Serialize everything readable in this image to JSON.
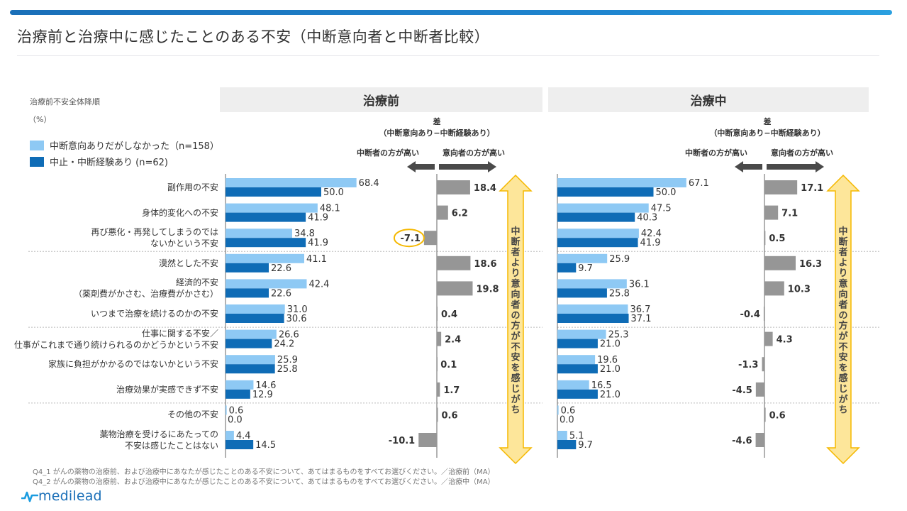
{
  "header": {
    "title": "治療前と治療中に感じたことのある不安（中断意向者と中断者比較）"
  },
  "sort_note": "治療前不安全体降順",
  "unit": "（%）",
  "legend": [
    {
      "label": "中断意向ありだがしなかった（n=158）",
      "color": "#8ec9f4"
    },
    {
      "label": "中止・中断経験あり (n=62)",
      "color": "#0f6cb6"
    }
  ],
  "panels": [
    {
      "title": "治療前"
    },
    {
      "title": "治療中"
    }
  ],
  "diff_header": {
    "line1": "差",
    "line2": "（中断意向あり−中断経験あり）",
    "left": "中断者の方が高い",
    "right": "意向者の方が高い"
  },
  "callout_arrow_text": "中断者より意向者の方が不安を感じがち",
  "colors": {
    "light": "#8ec9f4",
    "dark": "#0f6cb6",
    "diff": "#969696",
    "arrow_fill": "#fde69a",
    "arrow_stroke": "#f5b800",
    "highlight": "#f5b800"
  },
  "chart_data": {
    "type": "bar",
    "title": "治療前と治療中に感じたことのある不安（中断意向者と中断者比較）",
    "unit": "%",
    "categories": [
      "副作用の不安",
      "身体的変化への不安",
      "再び悪化・再発してしまうのではないかという不安",
      "漠然とした不安",
      "経済的不安（薬剤費がかさむ、治療費がかさむ）",
      "いつまで治療を続けるのかの不安",
      "仕事に関する不安／仕事がこれまで通り続けられるのかどうかという不安",
      "家族に負担がかかるのではないかという不安",
      "治療効果が実感できず不安",
      "その他の不安",
      "薬物治療を受けるにあたっての不安は感じたことはない"
    ],
    "category_lines": [
      [
        "副作用の不安"
      ],
      [
        "身体的変化への不安"
      ],
      [
        "再び悪化・再発してしまうのでは",
        "ないかという不安"
      ],
      [
        "漠然とした不安"
      ],
      [
        "経済的不安",
        "（薬剤費がかさむ、治療費がかさむ）"
      ],
      [
        "いつまで治療を続けるのかの不安"
      ],
      [
        "仕事に関する不安／",
        "仕事がこれまで通り続けられるのかどうかという不安"
      ],
      [
        "家族に負担がかかるのではないかという不安"
      ],
      [
        "治療効果が実感できず不安"
      ],
      [
        "その他の不安"
      ],
      [
        "薬物治療を受けるにあたっての",
        "不安は感じたことはない"
      ]
    ],
    "group_separators_after": [
      2,
      5,
      8
    ],
    "panels": [
      {
        "name": "治療前",
        "series": [
          {
            "name": "中断意向ありだがしなかった（n=158）",
            "values": [
              68.4,
              48.1,
              34.8,
              41.1,
              42.4,
              31.0,
              26.6,
              25.9,
              14.6,
              0.6,
              4.4
            ]
          },
          {
            "name": "中止・中断経験あり (n=62)",
            "values": [
              50.0,
              41.9,
              41.9,
              22.6,
              22.6,
              30.6,
              24.2,
              25.8,
              12.9,
              0.0,
              14.5
            ]
          }
        ],
        "diff": {
          "name": "差（中断意向あり−中断経験あり）",
          "values": [
            18.4,
            6.2,
            -7.1,
            18.6,
            19.8,
            0.4,
            2.4,
            0.1,
            1.7,
            0.6,
            -10.1
          ]
        },
        "highlighted_diff_index": 2
      },
      {
        "name": "治療中",
        "series": [
          {
            "name": "中断意向ありだがしなかった（n=158）",
            "values": [
              67.1,
              47.5,
              42.4,
              25.9,
              36.1,
              36.7,
              25.3,
              19.6,
              16.5,
              0.6,
              5.1
            ]
          },
          {
            "name": "中止・中断経験あり (n=62)",
            "values": [
              50.0,
              40.3,
              41.9,
              9.7,
              25.8,
              37.1,
              21.0,
              21.0,
              21.0,
              0.0,
              9.7
            ]
          }
        ],
        "diff": {
          "name": "差（中断意向あり−中断経験あり）",
          "values": [
            17.1,
            7.1,
            0.5,
            16.3,
            10.3,
            -0.4,
            4.3,
            -1.3,
            -4.5,
            0.6,
            -4.6
          ]
        },
        "highlighted_diff_index": null
      }
    ],
    "xlabel": "",
    "ylabel": ""
  },
  "footnotes": [
    "Q4_1  がんの薬物の治療前、および治療中にあなたが感じたことのある不安について、あてはまるものをすべてお選びください。／治療前（MA）",
    "Q4_2  がんの薬物の治療前、および治療中にあなたが感じたことのある不安について、あてはまるものをすべてお選びください。／治療中（MA）"
  ],
  "logo": {
    "text": "medilead"
  }
}
